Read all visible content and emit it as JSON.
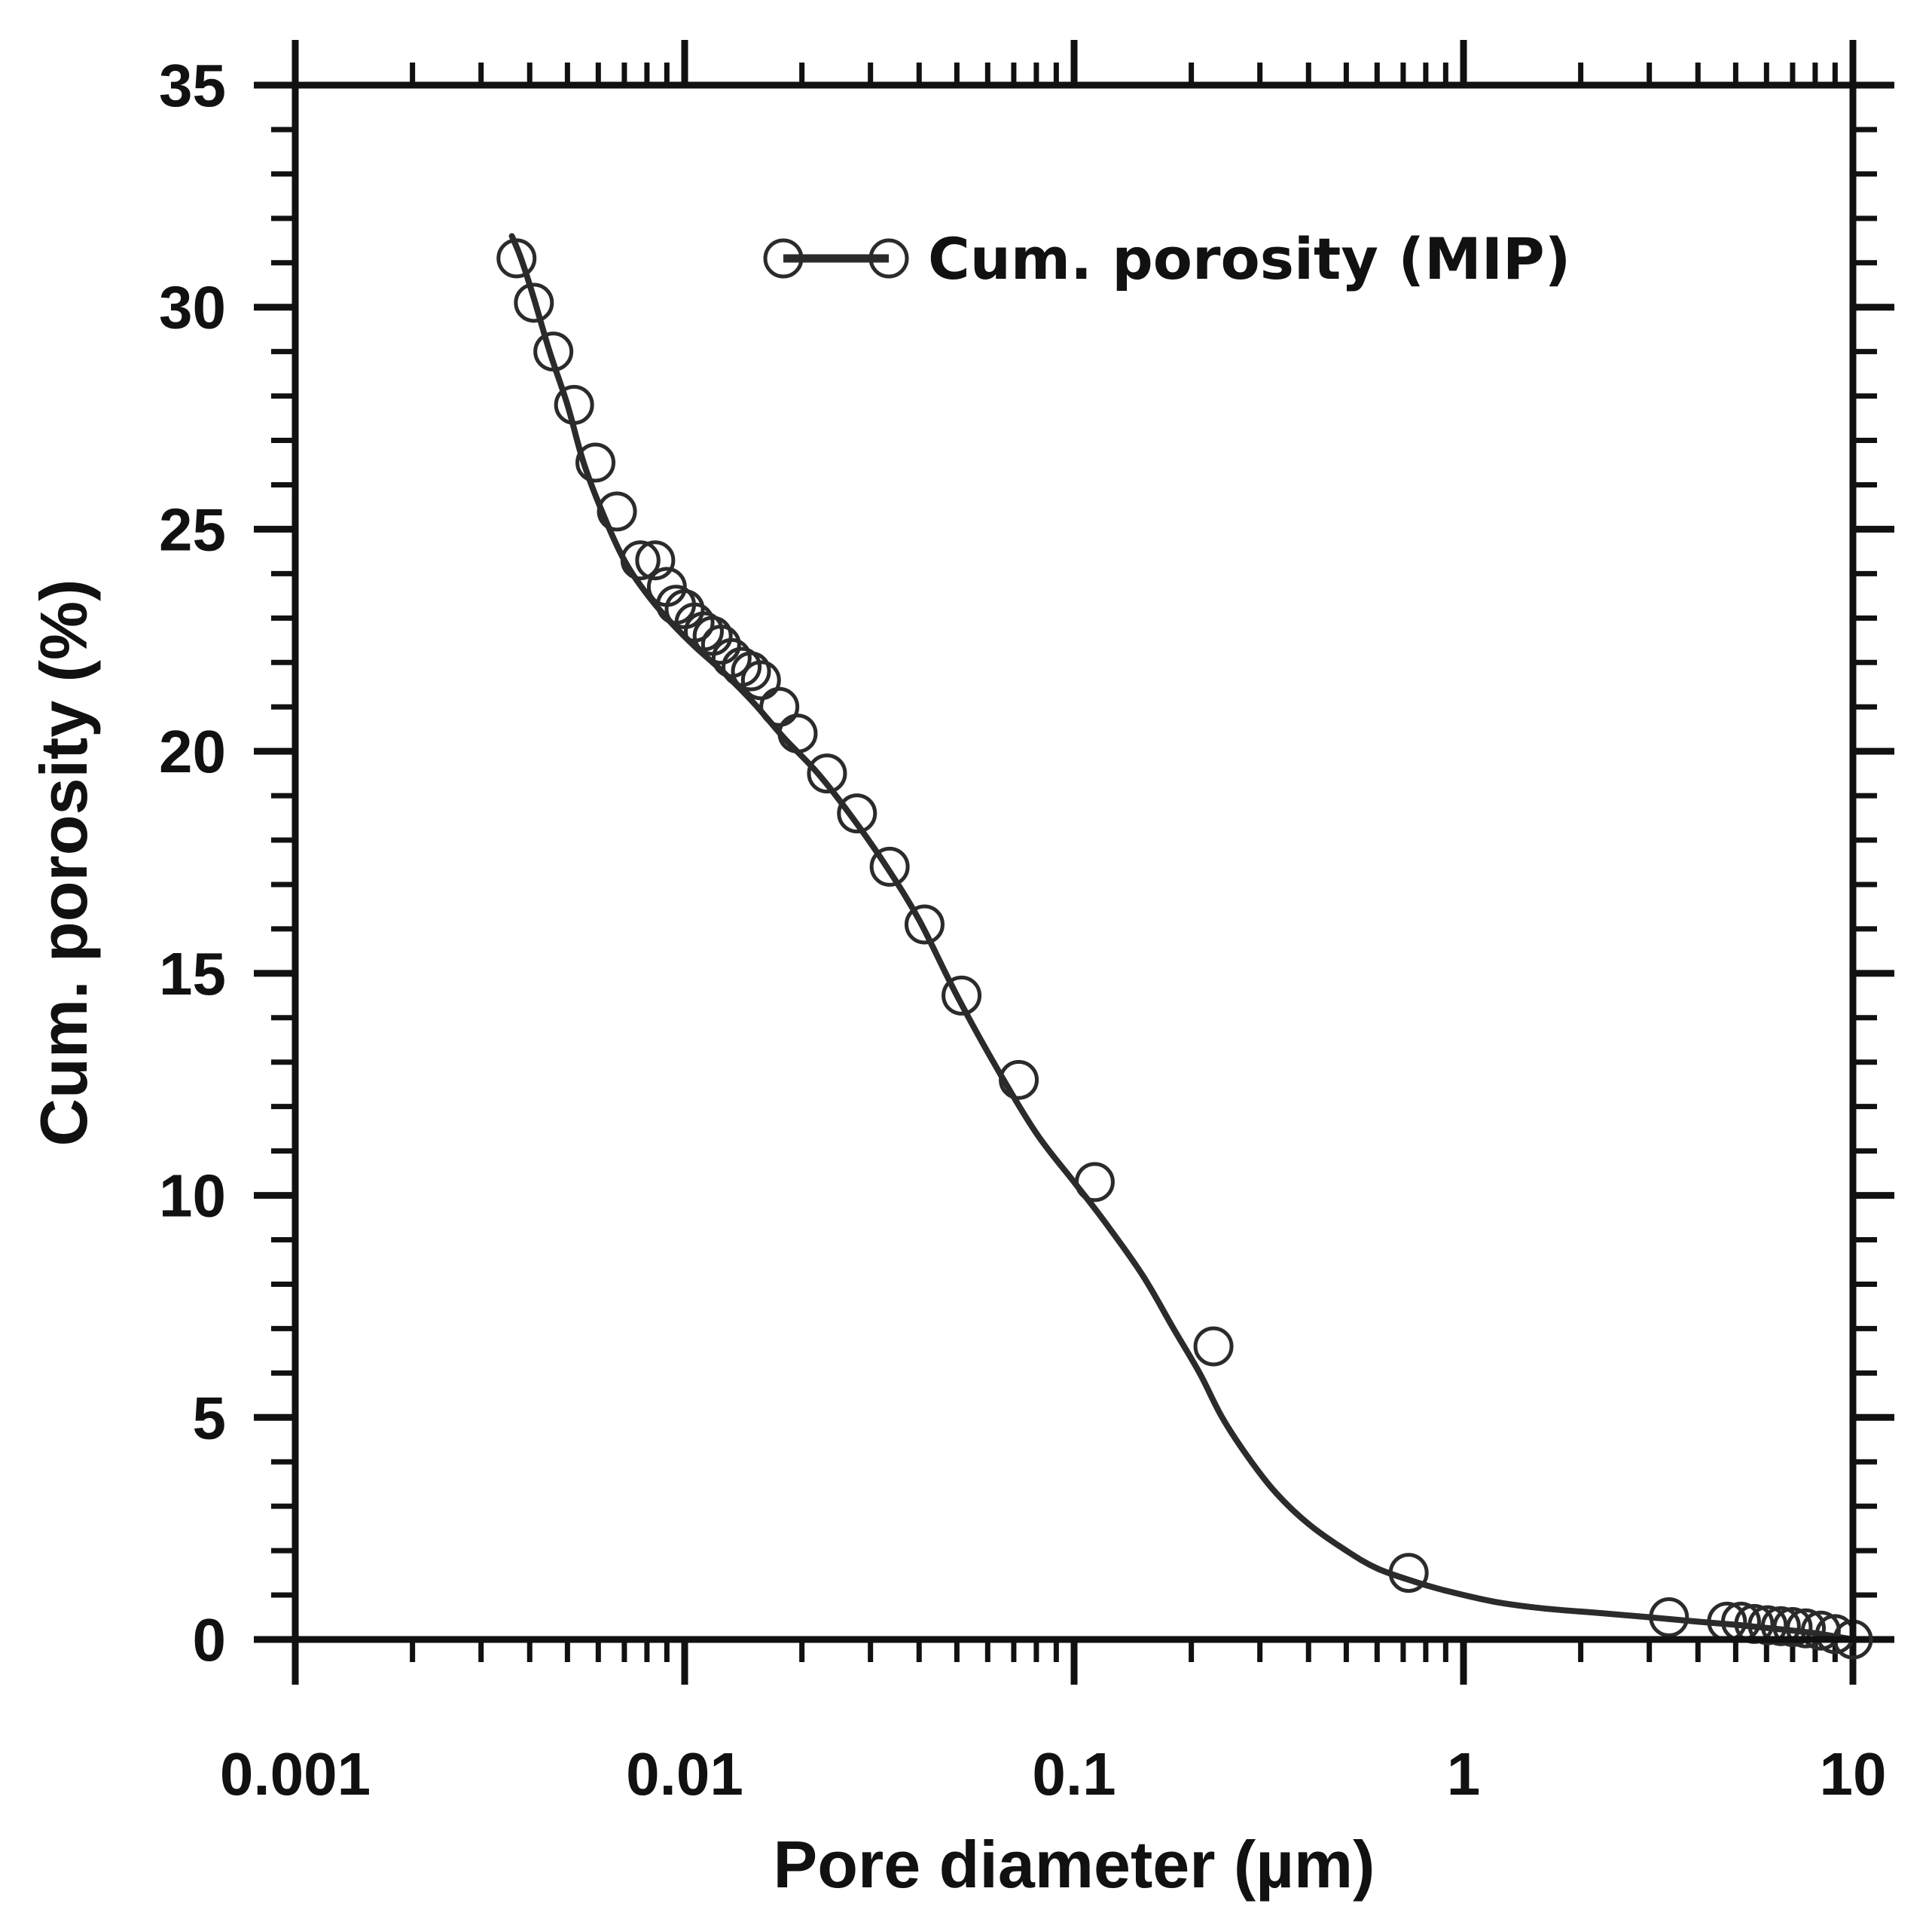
{
  "chart_data": {
    "type": "line",
    "x_scale": "log",
    "xlabel": "Pore diameter (µm)",
    "ylabel": "Cum. porosity (%)",
    "xlim": [
      0.001,
      10
    ],
    "ylim": [
      0,
      35
    ],
    "x_tick_values": [
      0.001,
      0.01,
      0.1,
      1,
      10
    ],
    "x_tick_labels": [
      "0.001",
      "0.01",
      "0.1",
      "1",
      "10"
    ],
    "y_tick_values": [
      0,
      5,
      10,
      15,
      20,
      25,
      30,
      35
    ],
    "y_tick_labels": [
      "0",
      "5",
      "10",
      "15",
      "20",
      "25",
      "30",
      "35"
    ],
    "legend": {
      "position": "top-center"
    },
    "colors": {
      "series": "#2b2b2b",
      "axes": "#111111"
    },
    "series": [
      {
        "name": "Cum. porosity (MIP)",
        "marker": "open-circle",
        "curve_x": [
          0.0036,
          0.0038,
          0.0041,
          0.0045,
          0.005,
          0.0055,
          0.0062,
          0.007,
          0.0079,
          0.009,
          0.0105,
          0.0125,
          0.015,
          0.018,
          0.022,
          0.027,
          0.033,
          0.04,
          0.05,
          0.063,
          0.08,
          0.1,
          0.12,
          0.15,
          0.18,
          0.21,
          0.24,
          0.28,
          0.33,
          0.4,
          0.5,
          0.6,
          0.75,
          0.9,
          1.2,
          1.6,
          2.2,
          3.0,
          4.0,
          5.0,
          6.0,
          7.0,
          8.0,
          9.0,
          10.0
        ],
        "curve_y": [
          31.6,
          31.1,
          30.2,
          29.0,
          27.8,
          26.5,
          25.3,
          24.3,
          23.6,
          23.0,
          22.4,
          21.8,
          21.1,
          20.3,
          19.5,
          18.5,
          17.4,
          16.2,
          14.5,
          12.9,
          11.4,
          10.3,
          9.4,
          8.2,
          7.0,
          6.0,
          5.0,
          4.1,
          3.3,
          2.6,
          2.0,
          1.6,
          1.3,
          1.1,
          0.85,
          0.7,
          0.6,
          0.5,
          0.4,
          0.33,
          0.26,
          0.2,
          0.14,
          0.07,
          0.0
        ],
        "x": [
          0.0037,
          0.0041,
          0.0046,
          0.0052,
          0.0059,
          0.0067,
          0.0077,
          0.0084,
          0.009,
          0.0095,
          0.01,
          0.0106,
          0.0112,
          0.0118,
          0.0124,
          0.0132,
          0.014,
          0.0148,
          0.0157,
          0.0175,
          0.0195,
          0.0232,
          0.0277,
          0.0336,
          0.0413,
          0.0514,
          0.0721,
          0.113,
          0.228,
          0.723,
          3.37,
          4.75,
          5.16,
          5.58,
          6.04,
          6.53,
          7.0,
          7.57,
          8.27,
          9.0,
          10.0
        ],
        "y": [
          31.1,
          30.1,
          29.0,
          27.8,
          26.5,
          25.4,
          24.3,
          24.3,
          23.7,
          23.3,
          23.2,
          22.9,
          22.7,
          22.6,
          22.4,
          22.1,
          21.9,
          21.8,
          21.6,
          21.0,
          20.4,
          19.5,
          18.6,
          17.4,
          16.1,
          14.5,
          12.6,
          10.3,
          6.6,
          1.5,
          0.5,
          0.4,
          0.4,
          0.35,
          0.32,
          0.3,
          0.28,
          0.25,
          0.2,
          0.12,
          0.0
        ]
      }
    ]
  }
}
